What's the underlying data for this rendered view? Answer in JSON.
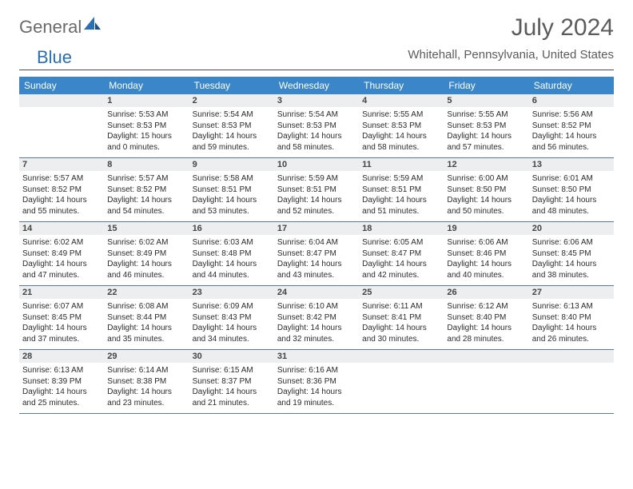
{
  "brand": {
    "text1": "General",
    "text2": "Blue"
  },
  "title": "July 2024",
  "location": "Whitehall, Pennsylvania, United States",
  "accent_color": "#3a86c9",
  "text_color": "#5b5b5b",
  "days_of_week": [
    "Sunday",
    "Monday",
    "Tuesday",
    "Wednesday",
    "Thursday",
    "Friday",
    "Saturday"
  ],
  "weeks": [
    [
      null,
      {
        "n": "1",
        "sr": "Sunrise: 5:53 AM",
        "ss": "Sunset: 8:53 PM",
        "d1": "Daylight: 15 hours",
        "d2": "and 0 minutes."
      },
      {
        "n": "2",
        "sr": "Sunrise: 5:54 AM",
        "ss": "Sunset: 8:53 PM",
        "d1": "Daylight: 14 hours",
        "d2": "and 59 minutes."
      },
      {
        "n": "3",
        "sr": "Sunrise: 5:54 AM",
        "ss": "Sunset: 8:53 PM",
        "d1": "Daylight: 14 hours",
        "d2": "and 58 minutes."
      },
      {
        "n": "4",
        "sr": "Sunrise: 5:55 AM",
        "ss": "Sunset: 8:53 PM",
        "d1": "Daylight: 14 hours",
        "d2": "and 58 minutes."
      },
      {
        "n": "5",
        "sr": "Sunrise: 5:55 AM",
        "ss": "Sunset: 8:53 PM",
        "d1": "Daylight: 14 hours",
        "d2": "and 57 minutes."
      },
      {
        "n": "6",
        "sr": "Sunrise: 5:56 AM",
        "ss": "Sunset: 8:52 PM",
        "d1": "Daylight: 14 hours",
        "d2": "and 56 minutes."
      }
    ],
    [
      {
        "n": "7",
        "sr": "Sunrise: 5:57 AM",
        "ss": "Sunset: 8:52 PM",
        "d1": "Daylight: 14 hours",
        "d2": "and 55 minutes."
      },
      {
        "n": "8",
        "sr": "Sunrise: 5:57 AM",
        "ss": "Sunset: 8:52 PM",
        "d1": "Daylight: 14 hours",
        "d2": "and 54 minutes."
      },
      {
        "n": "9",
        "sr": "Sunrise: 5:58 AM",
        "ss": "Sunset: 8:51 PM",
        "d1": "Daylight: 14 hours",
        "d2": "and 53 minutes."
      },
      {
        "n": "10",
        "sr": "Sunrise: 5:59 AM",
        "ss": "Sunset: 8:51 PM",
        "d1": "Daylight: 14 hours",
        "d2": "and 52 minutes."
      },
      {
        "n": "11",
        "sr": "Sunrise: 5:59 AM",
        "ss": "Sunset: 8:51 PM",
        "d1": "Daylight: 14 hours",
        "d2": "and 51 minutes."
      },
      {
        "n": "12",
        "sr": "Sunrise: 6:00 AM",
        "ss": "Sunset: 8:50 PM",
        "d1": "Daylight: 14 hours",
        "d2": "and 50 minutes."
      },
      {
        "n": "13",
        "sr": "Sunrise: 6:01 AM",
        "ss": "Sunset: 8:50 PM",
        "d1": "Daylight: 14 hours",
        "d2": "and 48 minutes."
      }
    ],
    [
      {
        "n": "14",
        "sr": "Sunrise: 6:02 AM",
        "ss": "Sunset: 8:49 PM",
        "d1": "Daylight: 14 hours",
        "d2": "and 47 minutes."
      },
      {
        "n": "15",
        "sr": "Sunrise: 6:02 AM",
        "ss": "Sunset: 8:49 PM",
        "d1": "Daylight: 14 hours",
        "d2": "and 46 minutes."
      },
      {
        "n": "16",
        "sr": "Sunrise: 6:03 AM",
        "ss": "Sunset: 8:48 PM",
        "d1": "Daylight: 14 hours",
        "d2": "and 44 minutes."
      },
      {
        "n": "17",
        "sr": "Sunrise: 6:04 AM",
        "ss": "Sunset: 8:47 PM",
        "d1": "Daylight: 14 hours",
        "d2": "and 43 minutes."
      },
      {
        "n": "18",
        "sr": "Sunrise: 6:05 AM",
        "ss": "Sunset: 8:47 PM",
        "d1": "Daylight: 14 hours",
        "d2": "and 42 minutes."
      },
      {
        "n": "19",
        "sr": "Sunrise: 6:06 AM",
        "ss": "Sunset: 8:46 PM",
        "d1": "Daylight: 14 hours",
        "d2": "and 40 minutes."
      },
      {
        "n": "20",
        "sr": "Sunrise: 6:06 AM",
        "ss": "Sunset: 8:45 PM",
        "d1": "Daylight: 14 hours",
        "d2": "and 38 minutes."
      }
    ],
    [
      {
        "n": "21",
        "sr": "Sunrise: 6:07 AM",
        "ss": "Sunset: 8:45 PM",
        "d1": "Daylight: 14 hours",
        "d2": "and 37 minutes."
      },
      {
        "n": "22",
        "sr": "Sunrise: 6:08 AM",
        "ss": "Sunset: 8:44 PM",
        "d1": "Daylight: 14 hours",
        "d2": "and 35 minutes."
      },
      {
        "n": "23",
        "sr": "Sunrise: 6:09 AM",
        "ss": "Sunset: 8:43 PM",
        "d1": "Daylight: 14 hours",
        "d2": "and 34 minutes."
      },
      {
        "n": "24",
        "sr": "Sunrise: 6:10 AM",
        "ss": "Sunset: 8:42 PM",
        "d1": "Daylight: 14 hours",
        "d2": "and 32 minutes."
      },
      {
        "n": "25",
        "sr": "Sunrise: 6:11 AM",
        "ss": "Sunset: 8:41 PM",
        "d1": "Daylight: 14 hours",
        "d2": "and 30 minutes."
      },
      {
        "n": "26",
        "sr": "Sunrise: 6:12 AM",
        "ss": "Sunset: 8:40 PM",
        "d1": "Daylight: 14 hours",
        "d2": "and 28 minutes."
      },
      {
        "n": "27",
        "sr": "Sunrise: 6:13 AM",
        "ss": "Sunset: 8:40 PM",
        "d1": "Daylight: 14 hours",
        "d2": "and 26 minutes."
      }
    ],
    [
      {
        "n": "28",
        "sr": "Sunrise: 6:13 AM",
        "ss": "Sunset: 8:39 PM",
        "d1": "Daylight: 14 hours",
        "d2": "and 25 minutes."
      },
      {
        "n": "29",
        "sr": "Sunrise: 6:14 AM",
        "ss": "Sunset: 8:38 PM",
        "d1": "Daylight: 14 hours",
        "d2": "and 23 minutes."
      },
      {
        "n": "30",
        "sr": "Sunrise: 6:15 AM",
        "ss": "Sunset: 8:37 PM",
        "d1": "Daylight: 14 hours",
        "d2": "and 21 minutes."
      },
      {
        "n": "31",
        "sr": "Sunrise: 6:16 AM",
        "ss": "Sunset: 8:36 PM",
        "d1": "Daylight: 14 hours",
        "d2": "and 19 minutes."
      },
      null,
      null,
      null
    ]
  ]
}
